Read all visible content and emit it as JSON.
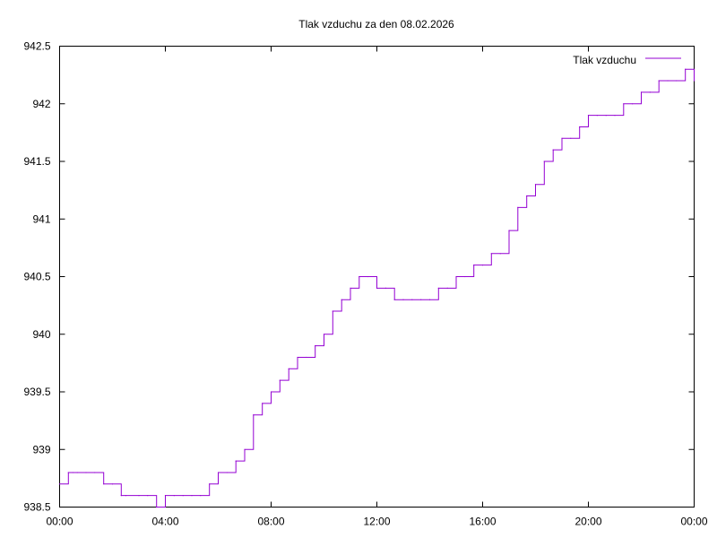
{
  "chart_data": {
    "type": "line",
    "title": "Tlak vzduchu za den 08.02.2026",
    "xlabel": "",
    "ylabel": "",
    "xlim": [
      "00:00",
      "24:00"
    ],
    "ylim": [
      938.5,
      942.5
    ],
    "grid": false,
    "legend_position": "top-right",
    "x_ticks": [
      "00:00",
      "04:00",
      "08:00",
      "12:00",
      "16:00",
      "20:00",
      "00:00"
    ],
    "y_ticks": [
      "938.5",
      "939",
      "939.5",
      "940",
      "940.5",
      "941",
      "941.5",
      "942",
      "942.5"
    ],
    "series": [
      {
        "name": "Tlak vzduchu",
        "color": "#9400d3",
        "x": [
          "00:00",
          "00:20",
          "00:30",
          "00:40",
          "01:00",
          "01:20",
          "01:40",
          "02:00",
          "02:20",
          "02:30",
          "03:00",
          "03:20",
          "03:40",
          "04:00",
          "04:20",
          "04:40",
          "05:00",
          "05:20",
          "05:40",
          "06:00",
          "06:20",
          "06:40",
          "07:00",
          "07:20",
          "07:40",
          "08:00",
          "08:20",
          "08:40",
          "09:00",
          "09:20",
          "09:40",
          "10:00",
          "10:20",
          "10:40",
          "11:00",
          "11:20",
          "11:40",
          "12:00",
          "12:20",
          "12:40",
          "13:00",
          "13:20",
          "13:40",
          "14:00",
          "14:20",
          "14:40",
          "15:00",
          "15:20",
          "15:40",
          "16:00",
          "16:20",
          "16:40",
          "17:00",
          "17:20",
          "17:40",
          "18:00",
          "18:20",
          "18:40",
          "19:00",
          "19:20",
          "19:40",
          "20:00",
          "20:20",
          "20:40",
          "21:00",
          "21:20",
          "21:40",
          "22:00",
          "22:20",
          "22:40",
          "23:00",
          "23:20",
          "23:40",
          "24:00"
        ],
        "values": [
          938.7,
          938.8,
          938.8,
          938.8,
          938.8,
          938.8,
          938.7,
          938.7,
          938.6,
          938.6,
          938.6,
          938.6,
          938.5,
          938.6,
          938.6,
          938.6,
          938.6,
          938.6,
          938.7,
          938.8,
          938.8,
          938.9,
          939.0,
          939.3,
          939.4,
          939.5,
          939.6,
          939.7,
          939.8,
          939.8,
          939.9,
          940.0,
          940.2,
          940.3,
          940.4,
          940.5,
          940.5,
          940.4,
          940.4,
          940.3,
          940.3,
          940.3,
          940.3,
          940.3,
          940.4,
          940.4,
          940.5,
          940.5,
          940.6,
          940.6,
          940.7,
          940.7,
          940.9,
          941.1,
          941.2,
          941.3,
          941.5,
          941.6,
          941.7,
          941.7,
          941.8,
          941.9,
          941.9,
          941.9,
          941.9,
          942.0,
          942.0,
          942.1,
          942.1,
          942.2,
          942.2,
          942.2,
          942.3,
          942.2
        ]
      }
    ]
  }
}
